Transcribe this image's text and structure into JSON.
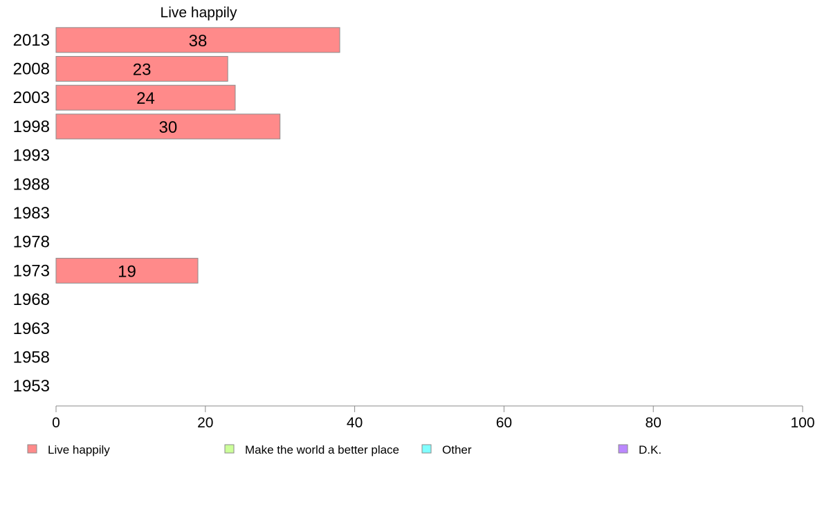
{
  "chart_data": {
    "type": "bar",
    "orientation": "horizontal",
    "title": "Live happily",
    "categories": [
      "2013",
      "2008",
      "2003",
      "1998",
      "1993",
      "1988",
      "1983",
      "1978",
      "1973",
      "1968",
      "1963",
      "1958",
      "1953"
    ],
    "series": [
      {
        "name": "Live happily",
        "color": "#ff8a8a",
        "values": [
          38,
          23,
          24,
          30,
          null,
          null,
          null,
          null,
          19,
          null,
          null,
          null,
          null
        ]
      }
    ],
    "data_labels": [
      "38",
      "23",
      "24",
      "30",
      "",
      "",
      "",
      "",
      "19",
      "",
      "",
      "",
      ""
    ],
    "xlim": [
      0,
      100
    ],
    "xticks": [
      "0",
      "20",
      "40",
      "60",
      "80",
      "100"
    ],
    "grid": false,
    "legend": {
      "placement": "bottom",
      "items": [
        {
          "label": "Live happily",
          "color": "#ff8a8a"
        },
        {
          "label": "Make the world a better place",
          "color": "#ccff99"
        },
        {
          "label": "Other",
          "color": "#80ffff"
        },
        {
          "label": "D.K.",
          "color": "#bb88ff"
        }
      ]
    }
  }
}
